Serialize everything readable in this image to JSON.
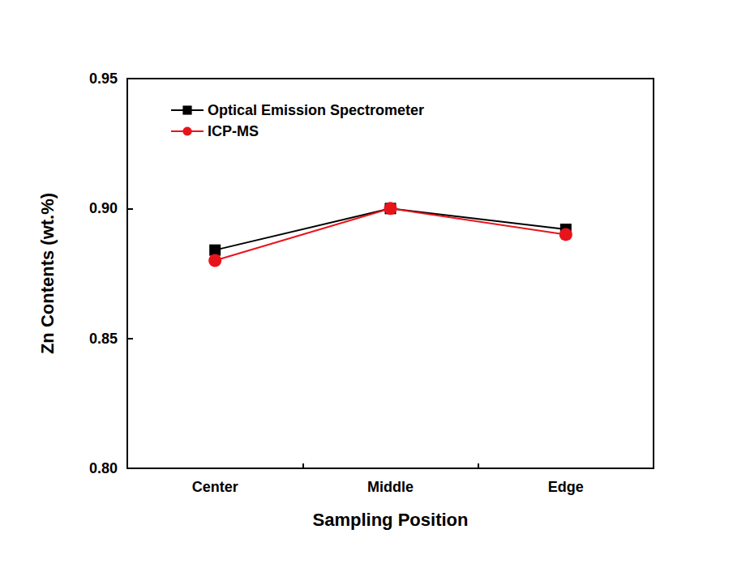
{
  "chart_data": {
    "type": "line",
    "categories": [
      "Center",
      "Middle",
      "Edge"
    ],
    "xlabel": "Sampling Position",
    "ylabel": "Zn Contents (wt.%)",
    "series": [
      {
        "name": "Optical Emission Spectrometer",
        "color": "#000000",
        "marker": "square",
        "values": [
          0.884,
          0.9,
          0.892
        ]
      },
      {
        "name": "ICP-MS",
        "color": "#e8141c",
        "marker": "circle",
        "values": [
          0.88,
          0.9,
          0.89
        ]
      }
    ],
    "ylim": [
      0.8,
      0.95
    ],
    "yticks": [
      {
        "value": 0.8,
        "label": "0.80"
      },
      {
        "value": 0.85,
        "label": "0.85"
      },
      {
        "value": 0.9,
        "label": "0.90"
      },
      {
        "value": 0.95,
        "label": "0.95"
      }
    ],
    "grid": false,
    "legend": "upper left"
  }
}
